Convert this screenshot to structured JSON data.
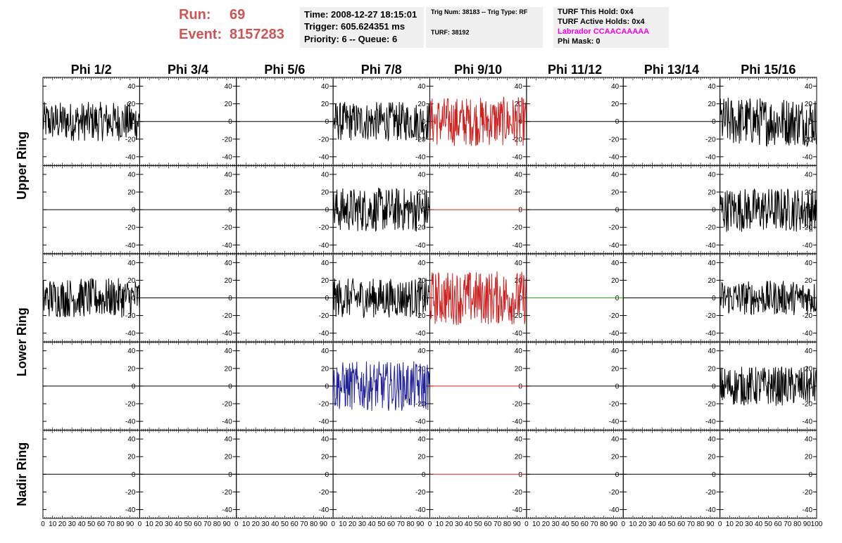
{
  "header": {
    "run_label": "Run:",
    "run_value": "69",
    "event_label": "Event:",
    "event_value": "8157283",
    "time": "Time: 2008-12-27 18:15:01",
    "trigger": "Trigger: 605.624351 ms",
    "priority": "Priority: 6 -- Queue: 6",
    "trig_num": "Trig Num: 38183 -- Trig Type: RF",
    "turf": "TURF: 38192",
    "turf_hold": "TURF This Hold: 0x4",
    "turf_active": "TURF Active Holds: 0x4",
    "labrador": "Labrador CCAACAAAAA",
    "phi_mask": "Phi Mask: 0",
    "labrador_color": "#ee00ee"
  },
  "chart_data": {
    "type": "line",
    "columns": [
      "Phi 1/2",
      "Phi 3/4",
      "Phi 5/6",
      "Phi 7/8",
      "Phi 9/10",
      "Phi 11/12",
      "Phi 13/14",
      "Phi 15/16"
    ],
    "ring_labels": [
      "Upper Ring",
      "Lower Ring",
      "Nadir Ring"
    ],
    "ring_row_spans": [
      2,
      2,
      1
    ],
    "ylim": [
      -50,
      50
    ],
    "yticks": [
      -40,
      -20,
      0,
      20,
      40
    ],
    "xlim": [
      0,
      100
    ],
    "xticks": [
      0,
      10,
      20,
      30,
      40,
      50,
      60,
      70,
      80,
      90,
      100
    ],
    "colors": {
      "k": "#000000",
      "r": "#cc2222",
      "b": "#222299",
      "g": "#22aa22"
    },
    "rows": [
      [
        {
          "color": "k",
          "amp": 16
        },
        {
          "color": "k",
          "amp": 0
        },
        {
          "color": "k",
          "amp": 0
        },
        {
          "color": "k",
          "amp": 16
        },
        {
          "color": "r",
          "amp": 20
        },
        {
          "color": "k",
          "amp": 0
        },
        {
          "color": "k",
          "amp": 0
        },
        {
          "color": "k",
          "amp": 20
        }
      ],
      [
        {
          "color": "k",
          "amp": 0
        },
        {
          "color": "k",
          "amp": 0
        },
        {
          "color": "k",
          "amp": 0
        },
        {
          "color": "k",
          "amp": 18
        },
        {
          "color": "r",
          "amp": 0
        },
        {
          "color": "k",
          "amp": 0
        },
        {
          "color": "k",
          "amp": 0
        },
        {
          "color": "k",
          "amp": 18
        }
      ],
      [
        {
          "color": "k",
          "amp": 16
        },
        {
          "color": "k",
          "amp": 0
        },
        {
          "color": "k",
          "amp": 0
        },
        {
          "color": "k",
          "amp": 16
        },
        {
          "color": "r",
          "amp": 22
        },
        {
          "color": "g",
          "amp": 0
        },
        {
          "color": "k",
          "amp": 0
        },
        {
          "color": "k",
          "amp": 14
        }
      ],
      [
        {
          "color": "k",
          "amp": 0
        },
        {
          "color": "k",
          "amp": 0
        },
        {
          "color": "k",
          "amp": 0
        },
        {
          "color": "b",
          "amp": 20
        },
        {
          "color": "r",
          "amp": 0
        },
        {
          "color": "k",
          "amp": 0
        },
        {
          "color": "k",
          "amp": 0
        },
        {
          "color": "k",
          "amp": 16
        }
      ],
      [
        {
          "color": "k",
          "amp": 0
        },
        {
          "color": "k",
          "amp": 0
        },
        {
          "color": "k",
          "amp": 0
        },
        {
          "color": "k",
          "amp": 0
        },
        {
          "color": "r",
          "amp": 0
        },
        {
          "color": "k",
          "amp": 0
        },
        {
          "color": "k",
          "amp": 0
        },
        {
          "color": "k",
          "amp": 0
        }
      ]
    ]
  }
}
